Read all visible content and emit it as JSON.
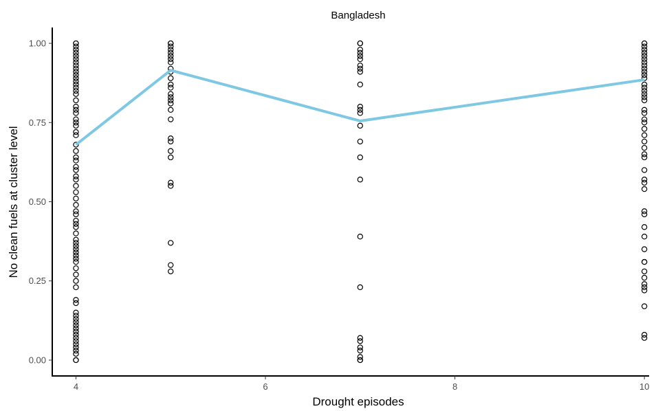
{
  "chart_data": {
    "type": "scatter",
    "title": "Bangladesh",
    "xlabel": "Drought episodes",
    "ylabel": "No clean fuels at cluster level",
    "xlim": [
      3.75,
      10.05
    ],
    "ylim": [
      -0.05,
      1.05
    ],
    "x_ticks": [
      4,
      6,
      8,
      10
    ],
    "x_tick_labels": [
      "4",
      "6",
      "8",
      "10"
    ],
    "y_ticks": [
      0,
      0.25,
      0.5,
      0.75,
      1
    ],
    "y_tick_labels": [
      "0.00",
      "0.25",
      "0.50",
      "0.75",
      "1.00"
    ],
    "grid": false,
    "legend": "none",
    "colors": {
      "points": "#000000",
      "line": "#7ec8e3",
      "axis": "#000000"
    },
    "series": [
      {
        "kind": "points",
        "groups": [
          {
            "x": 4,
            "y": [
              1.0,
              1.0,
              0.99,
              0.98,
              0.97,
              0.96,
              0.95,
              0.94,
              0.93,
              0.92,
              0.91,
              0.9,
              0.89,
              0.88,
              0.87,
              0.86,
              0.85,
              0.84,
              0.82,
              0.8,
              0.79,
              0.78,
              0.76,
              0.75,
              0.74,
              0.72,
              0.71,
              0.68,
              0.66,
              0.64,
              0.63,
              0.61,
              0.6,
              0.58,
              0.57,
              0.55,
              0.53,
              0.51,
              0.49,
              0.47,
              0.46,
              0.44,
              0.43,
              0.42,
              0.4,
              0.38,
              0.37,
              0.36,
              0.35,
              0.34,
              0.33,
              0.32,
              0.31,
              0.29,
              0.27,
              0.25,
              0.23,
              0.19,
              0.18,
              0.15,
              0.14,
              0.13,
              0.12,
              0.11,
              0.1,
              0.09,
              0.08,
              0.07,
              0.06,
              0.05,
              0.04,
              0.03,
              0.02,
              0.0,
              0.0
            ]
          },
          {
            "x": 5,
            "y": [
              1.0,
              1.0,
              0.99,
              0.98,
              0.97,
              0.96,
              0.95,
              0.94,
              0.92,
              0.91,
              0.89,
              0.87,
              0.86,
              0.84,
              0.83,
              0.82,
              0.81,
              0.79,
              0.76,
              0.7,
              0.69,
              0.66,
              0.64,
              0.56,
              0.55,
              0.37,
              0.3,
              0.28
            ]
          },
          {
            "x": 7,
            "y": [
              1.0,
              1.0,
              0.98,
              0.97,
              0.96,
              0.95,
              0.93,
              0.92,
              0.91,
              0.87,
              0.8,
              0.79,
              0.78,
              0.74,
              0.69,
              0.64,
              0.57,
              0.39,
              0.23,
              0.07,
              0.06,
              0.04,
              0.03,
              0.01,
              0.0,
              0.0
            ]
          },
          {
            "x": 10,
            "y": [
              1.0,
              1.0,
              0.99,
              0.98,
              0.97,
              0.96,
              0.95,
              0.94,
              0.93,
              0.92,
              0.91,
              0.9,
              0.89,
              0.87,
              0.86,
              0.85,
              0.84,
              0.83,
              0.82,
              0.79,
              0.78,
              0.76,
              0.75,
              0.73,
              0.71,
              0.69,
              0.67,
              0.65,
              0.64,
              0.6,
              0.57,
              0.56,
              0.54,
              0.47,
              0.46,
              0.42,
              0.39,
              0.35,
              0.31,
              0.31,
              0.28,
              0.26,
              0.24,
              0.22,
              0.23,
              0.17,
              0.08,
              0.07
            ]
          }
        ]
      },
      {
        "kind": "line",
        "x": [
          4,
          5,
          7,
          10
        ],
        "y": [
          0.68,
          0.915,
          0.755,
          0.885
        ]
      }
    ]
  }
}
